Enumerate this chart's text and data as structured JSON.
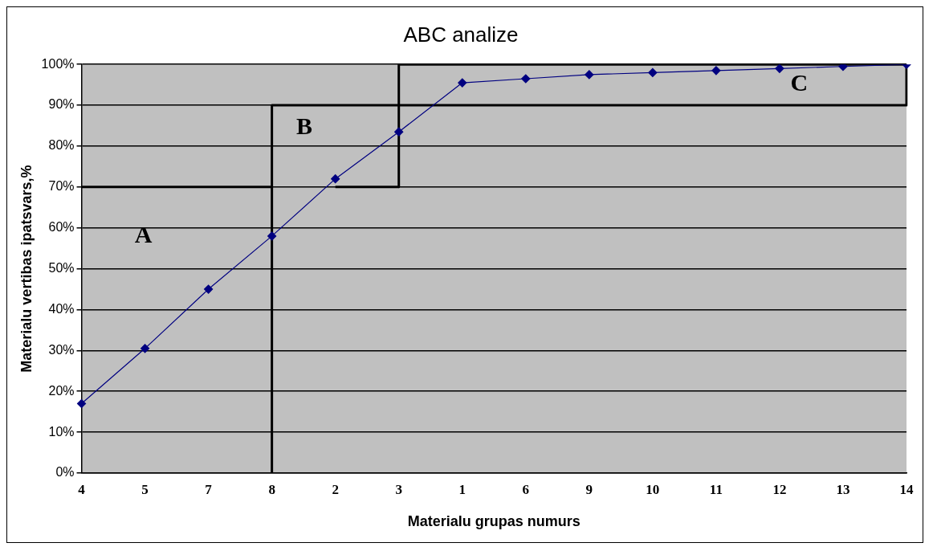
{
  "chart_data": {
    "type": "line",
    "title": "ABC analize",
    "xlabel": "Materialu grupas numurs",
    "ylabel": "Materialu vertibas ipatsvars,%",
    "categories": [
      "4",
      "5",
      "7",
      "8",
      "2",
      "3",
      "1",
      "6",
      "9",
      "10",
      "11",
      "12",
      "13",
      "14"
    ],
    "series": [
      {
        "color": "#000080",
        "values": [
          17,
          30.5,
          45,
          58,
          72,
          83.5,
          95.5,
          96.5,
          97.5,
          98,
          98.5,
          99,
          99.5,
          100
        ],
        "marker": "diamond"
      },
      {
        "type": "line",
        "color": "#000000",
        "x": [
          "4",
          "8"
        ],
        "values": [
          70,
          70
        ],
        "marker": "none"
      },
      {
        "type": "line",
        "color": "#000000",
        "x": [
          "8",
          "8",
          "14",
          "14",
          "3",
          "3"
        ],
        "values": [
          0,
          90,
          90,
          100,
          100,
          70
        ],
        "marker": "none"
      },
      {
        "type": "line",
        "color": "#000000",
        "x": [
          "2",
          "3"
        ],
        "values": [
          70,
          70
        ],
        "marker": "none"
      }
    ],
    "ylim": [
      0,
      100
    ],
    "yticks": [
      {
        "value": 0,
        "label": "0%"
      },
      {
        "value": 10,
        "label": "10%"
      },
      {
        "value": 20,
        "label": "20%"
      },
      {
        "value": 30,
        "label": "30%"
      },
      {
        "value": 40,
        "label": "40%"
      },
      {
        "value": 50,
        "label": "50%"
      },
      {
        "value": 60,
        "label": "60%"
      },
      {
        "value": 70,
        "label": "70%"
      },
      {
        "value": 80,
        "label": "80%"
      },
      {
        "value": 90,
        "label": "90%"
      },
      {
        "value": 100,
        "label": "100%"
      }
    ],
    "grid": "y",
    "legend": false,
    "line_style": "solid",
    "annotations": [
      "A",
      "B",
      "C"
    ]
  }
}
